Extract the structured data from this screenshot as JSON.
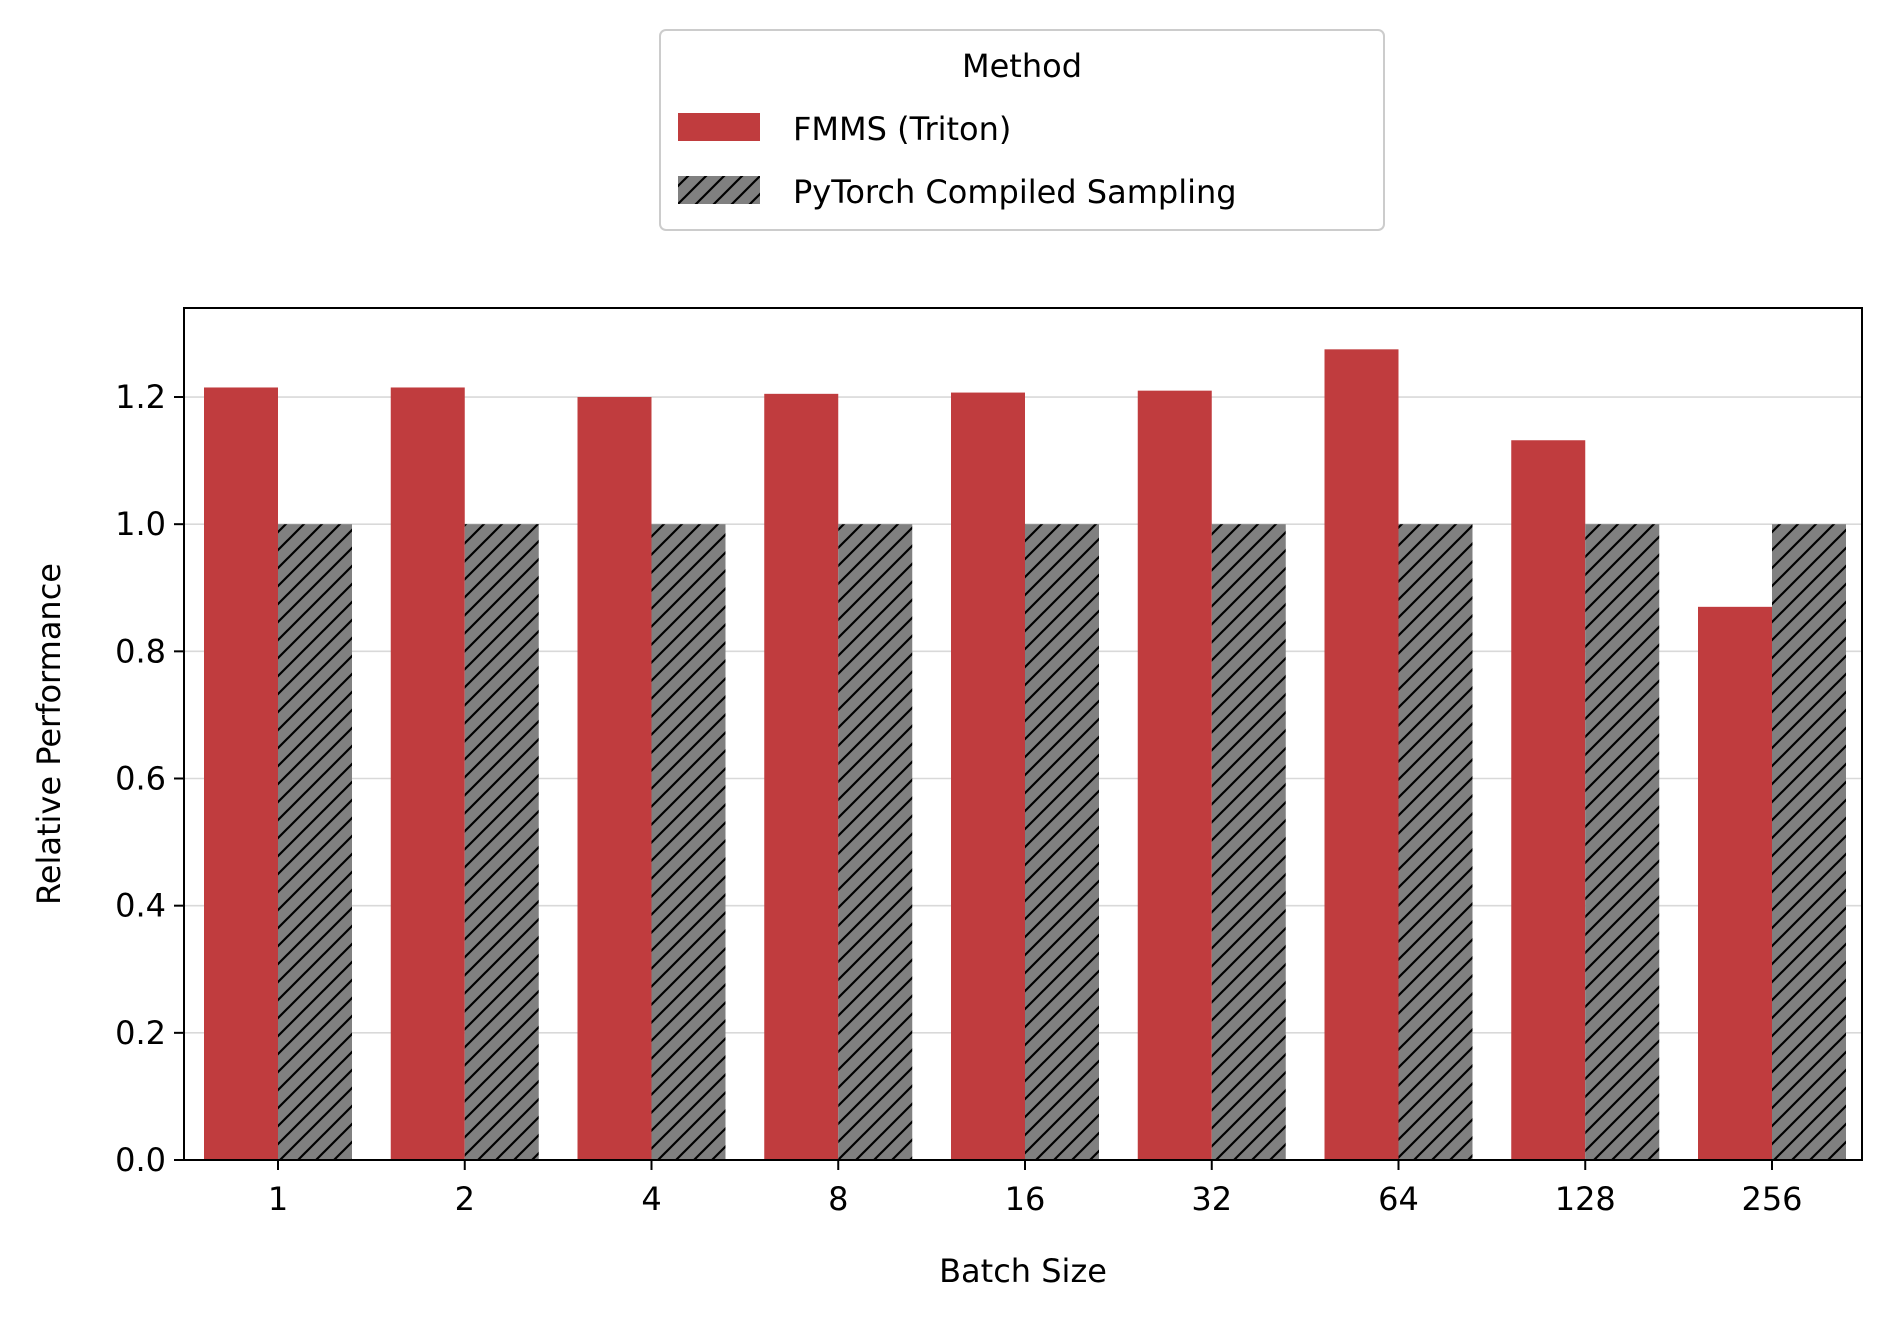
{
  "chart_data": {
    "type": "bar",
    "title": "",
    "xlabel": "Batch Size",
    "ylabel": "Relative Performance",
    "categories": [
      "1",
      "2",
      "4",
      "8",
      "16",
      "32",
      "64",
      "128",
      "256"
    ],
    "series": [
      {
        "name": "FMMS (Triton)",
        "color": "#c03c3e",
        "pattern": "solid",
        "values": [
          1.215,
          1.215,
          1.2,
          1.205,
          1.207,
          1.21,
          1.275,
          1.132,
          0.87
        ]
      },
      {
        "name": "PyTorch Compiled Sampling",
        "color": "#808080",
        "pattern": "diagonal-hatch",
        "values": [
          1.0,
          1.0,
          1.0,
          1.0,
          1.0,
          1.0,
          1.0,
          1.0,
          1.0
        ]
      }
    ],
    "ylim": [
      0,
      1.34
    ],
    "yticks": [
      "0.0",
      "0.2",
      "0.4",
      "0.6",
      "0.8",
      "1.0",
      "1.2"
    ],
    "grid": "horizontal",
    "legend": {
      "title": "Method",
      "placement": "top-center-outside"
    }
  }
}
